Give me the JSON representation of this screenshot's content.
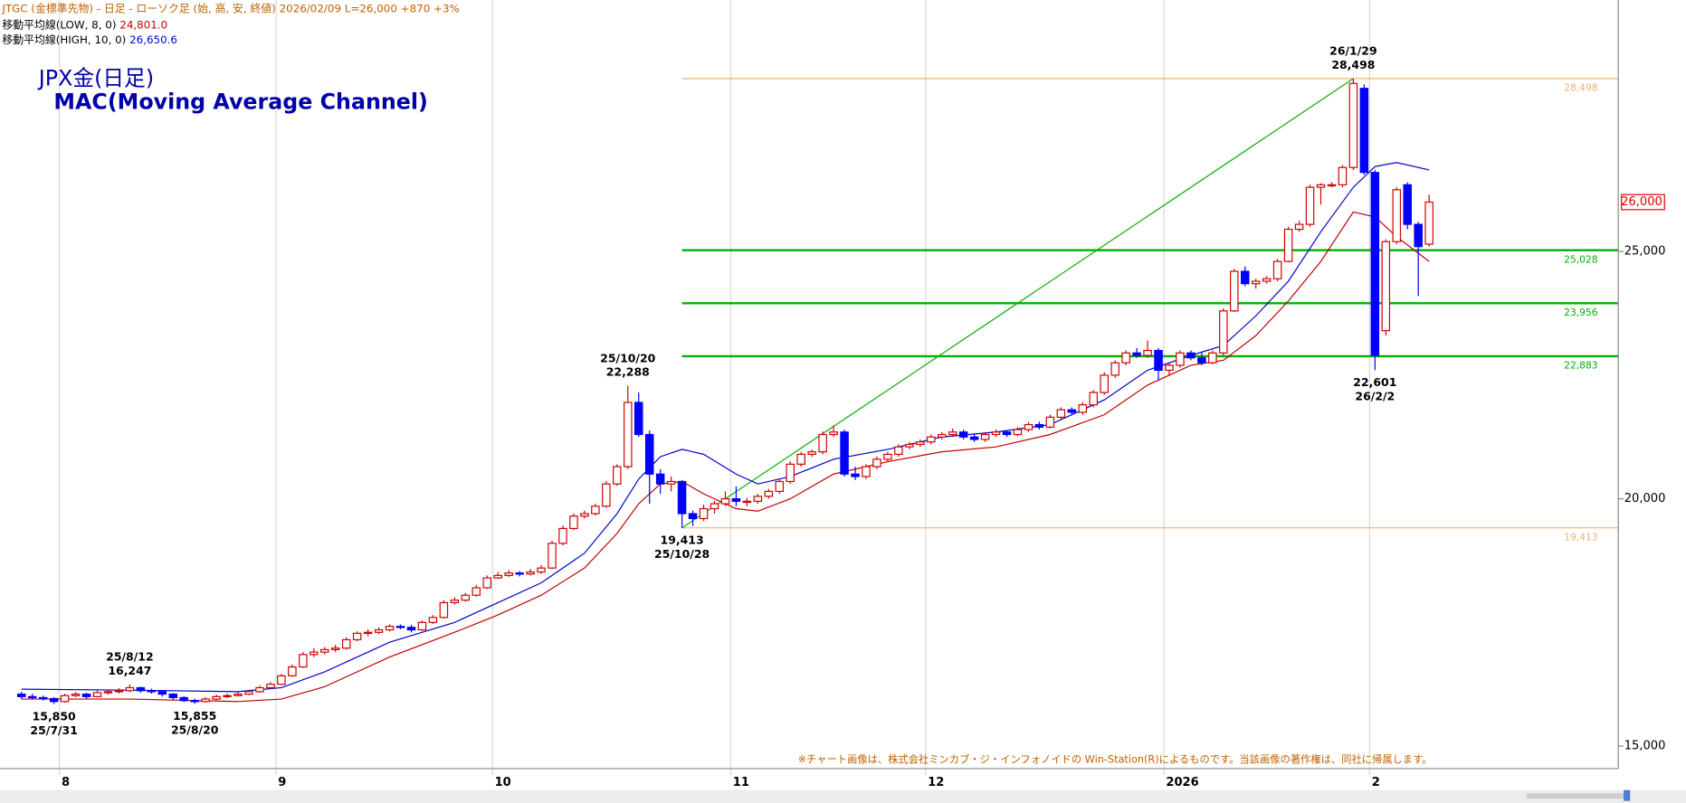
{
  "chart_data": {
    "type": "candlestick",
    "header": "JTGC (金標準先物) - 日足 - ローソク足 (始, 高, 安, 終値)  2026/02/09  L=26,000  +870  +3%",
    "title": "JPX金(日足)",
    "subtitle": "MAC(Moving Average Channel)",
    "note": "※チャート画像は、株式会社ミンカブ・ジ・インフォノイドの Win-Station(R)によるものです。当該画像の著作権は、同社に帰属します。",
    "up_color": "#d00000",
    "down_color": "#0000ff",
    "ylim": [
      14544,
      30087
    ],
    "yticks": [
      {
        "value": 15000,
        "label": "15,000"
      },
      {
        "value": 20000,
        "label": "20,000"
      },
      {
        "value": 25000,
        "label": "25,000"
      }
    ],
    "xgrid": true,
    "categories": [
      null,
      null,
      null,
      null,
      "8",
      null,
      null,
      null,
      null,
      null,
      null,
      null,
      null,
      null,
      null,
      null,
      null,
      null,
      null,
      null,
      null,
      null,
      null,
      null,
      "9",
      null,
      null,
      null,
      null,
      null,
      null,
      null,
      null,
      null,
      null,
      null,
      null,
      null,
      null,
      null,
      null,
      null,
      null,
      null,
      "10",
      null,
      null,
      null,
      null,
      null,
      null,
      null,
      null,
      null,
      null,
      null,
      null,
      null,
      null,
      null,
      null,
      null,
      null,
      null,
      null,
      null,
      "11",
      null,
      null,
      null,
      null,
      null,
      null,
      null,
      null,
      null,
      null,
      null,
      null,
      null,
      null,
      null,
      null,
      null,
      "12",
      null,
      null,
      null,
      null,
      null,
      null,
      null,
      null,
      null,
      null,
      null,
      null,
      null,
      null,
      null,
      null,
      null,
      null,
      null,
      null,
      null,
      "2026",
      null,
      null,
      null,
      null,
      null,
      null,
      null,
      null,
      null,
      null,
      null,
      null,
      null,
      null,
      null,
      null,
      null,
      null,
      "2",
      null,
      null,
      null,
      null,
      null
    ],
    "ohlc": [
      [
        16050,
        16100,
        15950,
        16000
      ],
      [
        16000,
        16060,
        15940,
        15980
      ],
      [
        15980,
        16020,
        15920,
        15960
      ],
      [
        15960,
        15990,
        15850,
        15900
      ],
      [
        15900,
        16060,
        15880,
        16020
      ],
      [
        16020,
        16090,
        15990,
        16050
      ],
      [
        16050,
        16080,
        15960,
        16000
      ],
      [
        16000,
        16120,
        15980,
        16080
      ],
      [
        16080,
        16140,
        16040,
        16100
      ],
      [
        16100,
        16170,
        16060,
        16120
      ],
      [
        16120,
        16247,
        16090,
        16180
      ],
      [
        16180,
        16200,
        16080,
        16120
      ],
      [
        16120,
        16160,
        16060,
        16100
      ],
      [
        16100,
        16130,
        16000,
        16050
      ],
      [
        16050,
        16070,
        15940,
        15980
      ],
      [
        15980,
        16010,
        15890,
        15920
      ],
      [
        15920,
        15960,
        15855,
        15900
      ],
      [
        15900,
        15990,
        15880,
        15950
      ],
      [
        15950,
        16040,
        15930,
        16000
      ],
      [
        16000,
        16060,
        15970,
        16020
      ],
      [
        16020,
        16090,
        16000,
        16050
      ],
      [
        16050,
        16140,
        16030,
        16100
      ],
      [
        16100,
        16220,
        16080,
        16180
      ],
      [
        16180,
        16290,
        16150,
        16250
      ],
      [
        16250,
        16460,
        16230,
        16420
      ],
      [
        16420,
        16650,
        16400,
        16600
      ],
      [
        16600,
        16900,
        16580,
        16850
      ],
      [
        16850,
        16980,
        16800,
        16900
      ],
      [
        16900,
        17000,
        16850,
        16950
      ],
      [
        16950,
        17050,
        16900,
        16980
      ],
      [
        16980,
        17200,
        16950,
        17150
      ],
      [
        17150,
        17320,
        17120,
        17280
      ],
      [
        17280,
        17360,
        17220,
        17300
      ],
      [
        17300,
        17400,
        17260,
        17350
      ],
      [
        17350,
        17460,
        17320,
        17420
      ],
      [
        17420,
        17460,
        17360,
        17400
      ],
      [
        17400,
        17450,
        17300,
        17350
      ],
      [
        17350,
        17540,
        17330,
        17500
      ],
      [
        17500,
        17650,
        17470,
        17600
      ],
      [
        17600,
        17950,
        17580,
        17900
      ],
      [
        17900,
        18010,
        17860,
        17950
      ],
      [
        17950,
        18100,
        17920,
        18050
      ],
      [
        18050,
        18260,
        18020,
        18200
      ],
      [
        18200,
        18450,
        18180,
        18400
      ],
      [
        18400,
        18520,
        18380,
        18450
      ],
      [
        18450,
        18560,
        18420,
        18500
      ],
      [
        18500,
        18540,
        18430,
        18480
      ],
      [
        18480,
        18580,
        18450,
        18520
      ],
      [
        18520,
        18660,
        18480,
        18600
      ],
      [
        18600,
        19150,
        18580,
        19100
      ],
      [
        19100,
        19460,
        19060,
        19400
      ],
      [
        19400,
        19700,
        19370,
        19650
      ],
      [
        19650,
        19760,
        19600,
        19700
      ],
      [
        19700,
        19900,
        19660,
        19850
      ],
      [
        19850,
        20360,
        19820,
        20300
      ],
      [
        20300,
        20700,
        20260,
        20650
      ],
      [
        20650,
        22288,
        20600,
        21950
      ],
      [
        21950,
        22150,
        21250,
        21300
      ],
      [
        21300,
        21380,
        19900,
        20500
      ],
      [
        20500,
        20600,
        20100,
        20300
      ],
      [
        20300,
        20450,
        20150,
        20350
      ],
      [
        20350,
        20380,
        19413,
        19700
      ],
      [
        19700,
        19760,
        19450,
        19600
      ],
      [
        19600,
        19880,
        19550,
        19800
      ],
      [
        19800,
        19960,
        19700,
        19900
      ],
      [
        19900,
        20150,
        19850,
        20000
      ],
      [
        20000,
        20250,
        19850,
        19950
      ],
      [
        19950,
        20020,
        19850,
        19950
      ],
      [
        19950,
        20100,
        19900,
        20050
      ],
      [
        20050,
        20200,
        20000,
        20150
      ],
      [
        20150,
        20400,
        20100,
        20350
      ],
      [
        20350,
        20760,
        20300,
        20700
      ],
      [
        20700,
        20950,
        20650,
        20900
      ],
      [
        20900,
        21000,
        20850,
        20950
      ],
      [
        20950,
        21360,
        20900,
        21300
      ],
      [
        21300,
        21480,
        21250,
        21350
      ],
      [
        21350,
        21400,
        20450,
        20500
      ],
      [
        20500,
        20650,
        20380,
        20450
      ],
      [
        20450,
        20700,
        20400,
        20650
      ],
      [
        20650,
        20860,
        20600,
        20800
      ],
      [
        20800,
        20950,
        20750,
        20900
      ],
      [
        20900,
        21100,
        20850,
        21050
      ],
      [
        21050,
        21150,
        21000,
        21100
      ],
      [
        21100,
        21200,
        21050,
        21150
      ],
      [
        21150,
        21300,
        21100,
        21250
      ],
      [
        21250,
        21350,
        21200,
        21300
      ],
      [
        21300,
        21420,
        21250,
        21350
      ],
      [
        21350,
        21400,
        21200,
        21250
      ],
      [
        21250,
        21300,
        21150,
        21200
      ],
      [
        21200,
        21350,
        21150,
        21300
      ],
      [
        21300,
        21400,
        21250,
        21350
      ],
      [
        21350,
        21380,
        21250,
        21300
      ],
      [
        21300,
        21450,
        21260,
        21400
      ],
      [
        21400,
        21550,
        21350,
        21500
      ],
      [
        21500,
        21560,
        21400,
        21450
      ],
      [
        21450,
        21700,
        21420,
        21650
      ],
      [
        21650,
        21850,
        21600,
        21800
      ],
      [
        21800,
        21850,
        21700,
        21750
      ],
      [
        21750,
        21950,
        21700,
        21900
      ],
      [
        21900,
        22200,
        21850,
        22150
      ],
      [
        22150,
        22560,
        22100,
        22500
      ],
      [
        22500,
        22800,
        22450,
        22750
      ],
      [
        22750,
        23000,
        22700,
        22950
      ],
      [
        22950,
        23050,
        22850,
        22900
      ],
      [
        22900,
        23200,
        22850,
        23000
      ],
      [
        23000,
        23050,
        22400,
        22600
      ],
      [
        22600,
        22760,
        22500,
        22700
      ],
      [
        22700,
        23000,
        22650,
        22950
      ],
      [
        22950,
        23000,
        22800,
        22850
      ],
      [
        22850,
        22950,
        22700,
        22750
      ],
      [
        22750,
        23000,
        22720,
        22950
      ],
      [
        22950,
        23850,
        22900,
        23800
      ],
      [
        23800,
        24650,
        23780,
        24600
      ],
      [
        24600,
        24700,
        24300,
        24350
      ],
      [
        24350,
        24450,
        24250,
        24400
      ],
      [
        24400,
        24500,
        24350,
        24450
      ],
      [
        24450,
        24850,
        24400,
        24800
      ],
      [
        24800,
        25500,
        24780,
        25450
      ],
      [
        25450,
        25620,
        25400,
        25550
      ],
      [
        25550,
        26350,
        25500,
        26300
      ],
      [
        26300,
        26380,
        25950,
        26350
      ],
      [
        26350,
        26400,
        26300,
        26350
      ],
      [
        26350,
        26750,
        26300,
        26700
      ],
      [
        26700,
        28498,
        26650,
        28400
      ],
      [
        28300,
        28380,
        26550,
        26600
      ],
      [
        26600,
        26650,
        22601,
        22900
      ],
      [
        23400,
        25250,
        23300,
        25200
      ],
      [
        25200,
        26300,
        25150,
        26250
      ],
      [
        26350,
        26400,
        25450,
        25550
      ],
      [
        25550,
        25600,
        24100,
        25100
      ],
      [
        25150,
        26150,
        25100,
        26000
      ]
    ],
    "indicators": [
      {
        "name": "移動平均線(LOW, 8, 0)",
        "color": "#c00000",
        "last": {
          "value": 24801.0,
          "label": "24,801.0"
        },
        "x": [
          0,
          10,
          20,
          24,
          28,
          34,
          40,
          44,
          48,
          52,
          55,
          57,
          59,
          61,
          63,
          66,
          68,
          71,
          75,
          80,
          85,
          90,
          95,
          100,
          104,
          108,
          111,
          114,
          117,
          120,
          123,
          125,
          127,
          130
        ],
        "values": [
          15950,
          15950,
          15900,
          15950,
          16200,
          16800,
          17300,
          17650,
          18050,
          18600,
          19300,
          19900,
          20300,
          20350,
          20100,
          19800,
          19750,
          20000,
          20500,
          20750,
          20950,
          21050,
          21300,
          21700,
          22300,
          22700,
          22800,
          23300,
          24000,
          24800,
          25800,
          25700,
          25300,
          24801
        ]
      },
      {
        "name": "移動平均線(HIGH, 10, 0)",
        "color": "#0000cc",
        "last": {
          "value": 26650.6,
          "label": "26,650.6"
        },
        "x": [
          0,
          10,
          20,
          24,
          28,
          34,
          40,
          44,
          48,
          52,
          55,
          57,
          59,
          61,
          63,
          66,
          68,
          71,
          75,
          80,
          85,
          90,
          95,
          100,
          104,
          108,
          111,
          114,
          117,
          120,
          123,
          125,
          127,
          130
        ],
        "values": [
          16150,
          16130,
          16100,
          16180,
          16500,
          17100,
          17500,
          17900,
          18300,
          18900,
          19700,
          20400,
          20850,
          21000,
          20900,
          20500,
          20300,
          20450,
          20800,
          21000,
          21250,
          21350,
          21500,
          22000,
          22600,
          22900,
          23100,
          23700,
          24400,
          25400,
          26300,
          26720,
          26800,
          26650.6
        ]
      }
    ],
    "levels": [
      {
        "value": 28498,
        "label": "28,498",
        "color": "#f0b070",
        "width": 1
      },
      {
        "value": 25028,
        "label": "25,028",
        "color": "#00b000",
        "width": 2
      },
      {
        "value": 23956,
        "label": "23,956",
        "color": "#00b000",
        "width": 2
      },
      {
        "value": 22883,
        "label": "22,883",
        "color": "#00b000",
        "width": 2
      },
      {
        "value": 19413,
        "label": "19,413",
        "color": "#f0b070",
        "width": 1
      }
    ],
    "trendline": {
      "values": [
        19413,
        28498
      ],
      "color": "#00b000"
    },
    "annotations": [
      {
        "date": "25/7/31",
        "price": {
          "value": 15850,
          "label": "15,850"
        },
        "position": "below"
      },
      {
        "date": "25/8/12",
        "price": {
          "value": 16247,
          "label": "16,247"
        },
        "position": "above"
      },
      {
        "date": "25/8/20",
        "price": {
          "value": 15855,
          "label": "15,855"
        },
        "position": "below"
      },
      {
        "date": "25/10/20",
        "price": {
          "value": 22288,
          "label": "22,288"
        },
        "position": "above"
      },
      {
        "date": "25/10/28",
        "price": {
          "value": 19413,
          "label": "19,413"
        },
        "position": "below"
      },
      {
        "date": "26/1/29",
        "price": {
          "value": 28498,
          "label": "28,498"
        },
        "position": "above"
      },
      {
        "date": "26/2/2",
        "price": {
          "value": 22601,
          "label": "22,601"
        },
        "position": "below"
      }
    ],
    "last_price": {
      "value": 26000,
      "label": "26,000",
      "color": "#e00000"
    }
  }
}
